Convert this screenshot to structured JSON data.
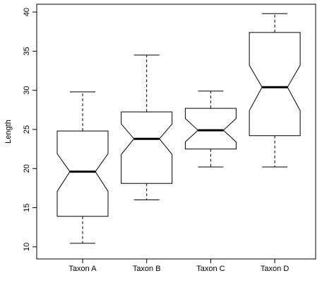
{
  "chart_data": {
    "type": "box",
    "y_label": "Length",
    "categories": [
      "Taxon A",
      "Taxon B",
      "Taxon C",
      "Taxon D"
    ],
    "whisker_low": [
      10.45,
      16.0,
      20.2,
      20.2
    ],
    "q1": [
      13.9,
      18.1,
      22.5,
      24.2
    ],
    "notch_low": [
      17.1,
      21.8,
      23.4,
      27.4
    ],
    "median": [
      19.6,
      23.8,
      24.9,
      30.4
    ],
    "notch_high": [
      21.9,
      25.7,
      26.4,
      33.2
    ],
    "q3": [
      24.8,
      27.25,
      27.7,
      37.4
    ],
    "whisker_high": [
      29.8,
      34.5,
      29.9,
      39.8
    ],
    "ylim": [
      8.45,
      41.0
    ],
    "yticks": [
      10,
      15,
      20,
      25,
      30,
      35,
      40
    ]
  }
}
